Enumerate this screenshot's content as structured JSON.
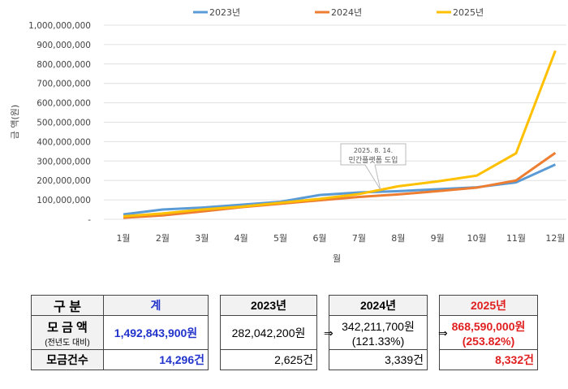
{
  "chart_data": {
    "type": "line",
    "categories": [
      "1월",
      "2월",
      "3월",
      "4월",
      "5월",
      "6월",
      "7월",
      "8월",
      "9월",
      "10월",
      "11월",
      "12월"
    ],
    "xlabel": "월",
    "ylabel": "금 액(원)",
    "ylim": [
      0,
      1000000000
    ],
    "yticks": [
      "-",
      "100,000,000",
      "200,000,000",
      "300,000,000",
      "400,000,000",
      "500,000,000",
      "600,000,000",
      "700,000,000",
      "800,000,000",
      "900,000,000",
      "1,000,000,000"
    ],
    "grid": true,
    "legend": "top",
    "series": [
      {
        "name": "2023년",
        "color": "#5b9bd5",
        "values": [
          25000000,
          50000000,
          60000000,
          75000000,
          90000000,
          125000000,
          138000000,
          145000000,
          155000000,
          165000000,
          190000000,
          282042200
        ]
      },
      {
        "name": "2024년",
        "color": "#ed7d31",
        "values": [
          8000000,
          20000000,
          40000000,
          62000000,
          80000000,
          98000000,
          115000000,
          128000000,
          145000000,
          163000000,
          200000000,
          342211700
        ]
      },
      {
        "name": "2025년",
        "color": "#ffc000",
        "values": [
          15000000,
          30000000,
          50000000,
          65000000,
          85000000,
          105000000,
          130000000,
          170000000,
          195000000,
          225000000,
          340000000,
          868590000
        ]
      }
    ],
    "annotation": {
      "line1": "2025. 8. 14.",
      "line2": "민간플랫폼 도입",
      "month": "8월"
    }
  },
  "table": {
    "h": [
      "구  분",
      "계",
      "2023년",
      "2024년",
      "2025년"
    ],
    "amount_label": "모 금 액",
    "amount_sub": "(전년도 대비)",
    "total_amount": "1,492,843,900원",
    "a2023": "282,042,200원",
    "a2024": "342,211,700원",
    "p2024": "(121.33%)",
    "a2025": "868,590,000원",
    "p2025": "(253.82%)",
    "arrow": "⇒",
    "count_label": "모금건수",
    "total_count": "14,296건",
    "c2023": "2,625건",
    "c2024": "3,339건",
    "c2025": "8,332건"
  }
}
